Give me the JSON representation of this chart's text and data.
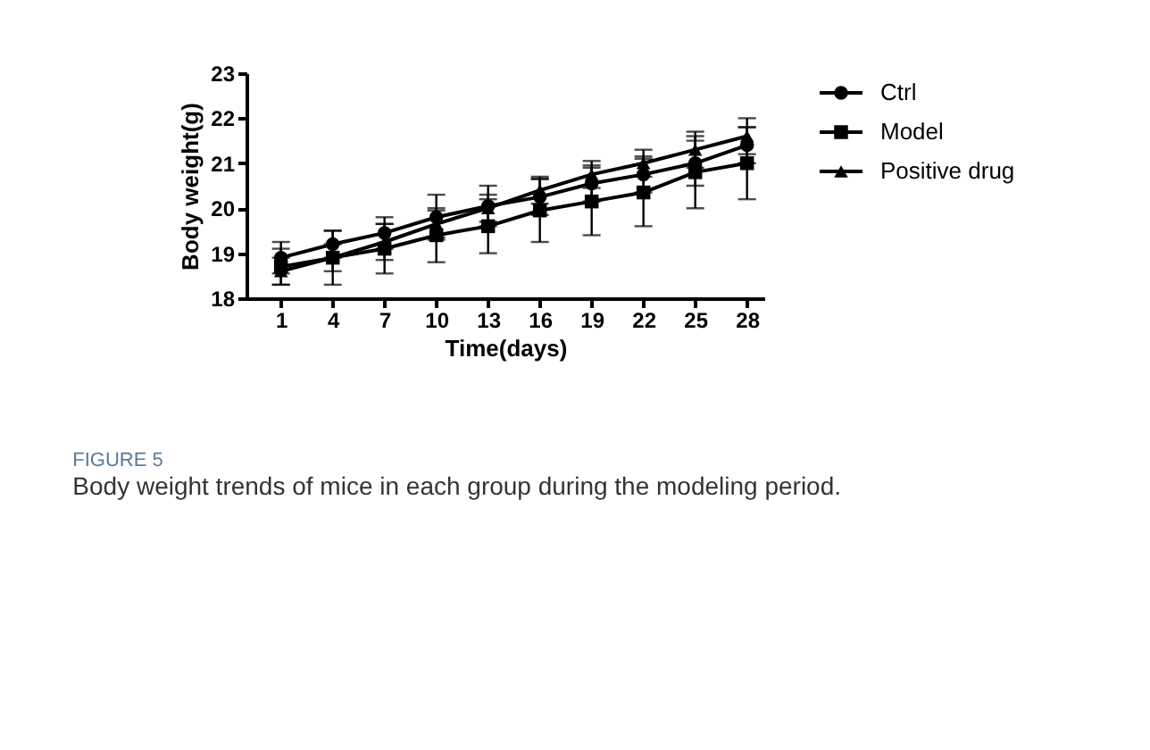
{
  "chart_data": {
    "type": "line",
    "xlabel": "Time(days)",
    "ylabel": "Body weight(g)",
    "x": [
      1,
      4,
      7,
      10,
      13,
      16,
      19,
      22,
      25,
      28
    ],
    "xlim": [
      -1,
      29
    ],
    "xticks": [
      1,
      4,
      7,
      10,
      13,
      16,
      19,
      22,
      25,
      28
    ],
    "ylim": [
      18,
      23
    ],
    "yticks": [
      18,
      19,
      20,
      21,
      22,
      23
    ],
    "grid": false,
    "legend": "top right",
    "series": [
      {
        "name": "Ctrl",
        "color": "#000000",
        "marker": "circle",
        "values": [
          18.9,
          19.2,
          19.45,
          19.8,
          20.05,
          20.25,
          20.55,
          20.75,
          21.0,
          21.4
        ],
        "errors": [
          0.35,
          0.3,
          0.35,
          0.5,
          0.45,
          0.4,
          0.4,
          0.4,
          0.5,
          0.4
        ]
      },
      {
        "name": "Model",
        "color": "#000000",
        "marker": "square",
        "values": [
          18.7,
          18.9,
          19.1,
          19.4,
          19.6,
          19.95,
          20.15,
          20.35,
          20.8,
          21.0
        ],
        "errors": [
          0.4,
          0.6,
          0.55,
          0.6,
          0.6,
          0.7,
          0.75,
          0.75,
          0.8,
          0.8
        ]
      },
      {
        "name": "Positive drug",
        "color": "#000000",
        "marker": "triangle",
        "values": [
          18.6,
          18.9,
          19.25,
          19.65,
          20.0,
          20.4,
          20.75,
          21.0,
          21.3,
          21.6
        ],
        "errors": [
          0.3,
          0.3,
          0.4,
          0.3,
          0.3,
          0.3,
          0.3,
          0.3,
          0.4,
          0.4
        ]
      }
    ],
    "annotations": [
      "FIGURE 5",
      "Body weight trends of mice in each group during the modeling period."
    ]
  }
}
